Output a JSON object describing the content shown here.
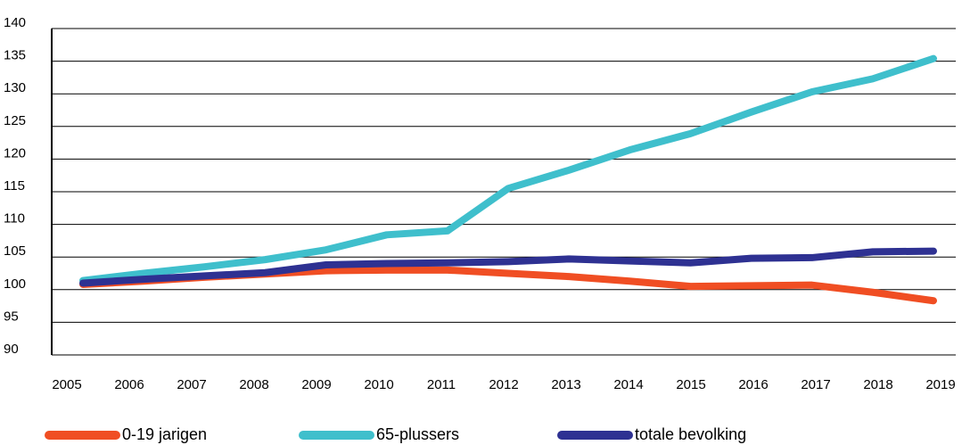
{
  "chart_data": {
    "type": "line",
    "categories": [
      "2005",
      "2006",
      "2007",
      "2008",
      "2009",
      "2010",
      "2011",
      "2012",
      "2013",
      "2014",
      "2015",
      "2016",
      "2017",
      "2018",
      "2019"
    ],
    "series": [
      {
        "name": "0-19 jarigen",
        "color": "#f04e23",
        "values": [
          100.8,
          101.3,
          101.9,
          102.4,
          102.9,
          103.0,
          103.0,
          102.5,
          102.0,
          101.3,
          100.5,
          100.6,
          100.7,
          99.6,
          98.3
        ]
      },
      {
        "name": "65-plussers",
        "color": "#3fbfcc",
        "values": [
          101.4,
          102.5,
          103.5,
          104.6,
          106.1,
          108.4,
          109.0,
          115.5,
          118.3,
          121.4,
          123.9,
          127.2,
          130.3,
          132.3,
          135.4
        ]
      },
      {
        "name": "totale bevolking",
        "color": "#2e3192",
        "values": [
          101.0,
          101.6,
          102.1,
          102.6,
          103.8,
          104.0,
          104.1,
          104.3,
          104.7,
          104.4,
          104.1,
          104.8,
          104.9,
          105.8,
          105.9
        ]
      }
    ],
    "ylim": [
      90,
      140
    ],
    "yticks": [
      90,
      95,
      100,
      105,
      110,
      115,
      120,
      125,
      130,
      135,
      140
    ],
    "grid": true,
    "legend": "bottom"
  }
}
